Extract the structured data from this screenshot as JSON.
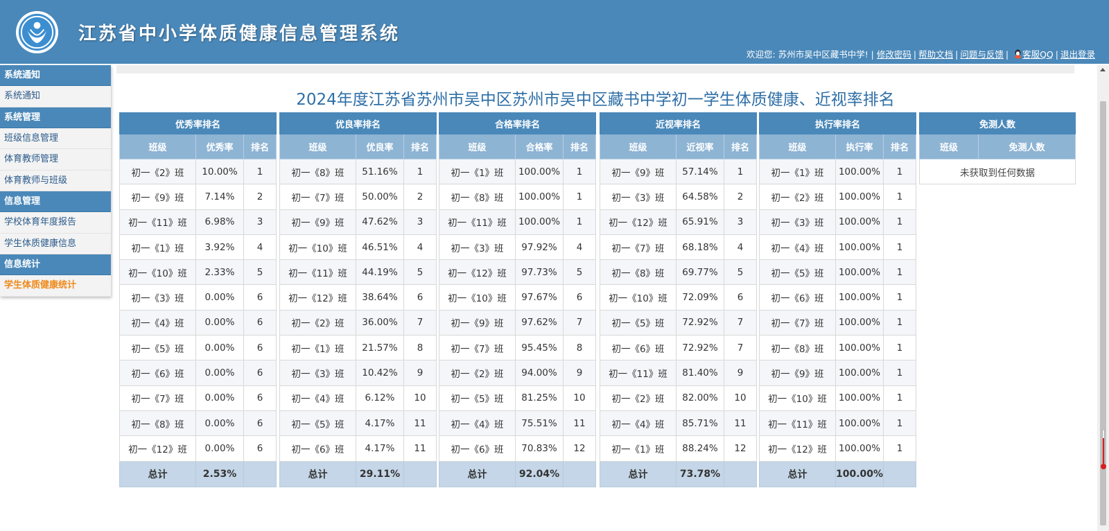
{
  "header": {
    "title": "江苏省中小学体质健康信息管理系统",
    "welcome": "欢迎您: 苏州市吴中区藏书中学! |",
    "links": {
      "change_password": "修改密码",
      "help_docs": "帮助文档",
      "feedback": "问题与反馈",
      "service_qq": "客服QQ",
      "logout": "退出登录"
    },
    "logo_icon": "school-health-logo",
    "brand_color": "#4a88b9"
  },
  "sidebar": {
    "groups": [
      {
        "title": "系统通知",
        "items": [
          "系统通知"
        ]
      },
      {
        "title": "系统管理",
        "items": [
          "班级信息管理",
          "体育教师管理",
          "体育教师与班级"
        ]
      },
      {
        "title": "信息管理",
        "items": [
          "学校体育年度报告",
          "学生体质健康信息"
        ]
      },
      {
        "title": "信息统计",
        "items": [
          "学生体质健康统计"
        ]
      }
    ],
    "active_item": "学生体质健康统计",
    "active_color": "#ef8a1b"
  },
  "page_title": "2024年度江苏省苏州市吴中区苏州市吴中区藏书中学初一学生体质健康、近视率排名",
  "tables": [
    {
      "title": "优秀率排名",
      "headers": [
        "班级",
        "优秀率",
        "排名"
      ],
      "rows": [
        [
          "初一《2》班",
          "10.00%",
          "1"
        ],
        [
          "初一《9》班",
          "7.14%",
          "2"
        ],
        [
          "初一《11》班",
          "6.98%",
          "3"
        ],
        [
          "初一《1》班",
          "3.92%",
          "4"
        ],
        [
          "初一《10》班",
          "2.33%",
          "5"
        ],
        [
          "初一《3》班",
          "0.00%",
          "6"
        ],
        [
          "初一《4》班",
          "0.00%",
          "6"
        ],
        [
          "初一《5》班",
          "0.00%",
          "6"
        ],
        [
          "初一《6》班",
          "0.00%",
          "6"
        ],
        [
          "初一《7》班",
          "0.00%",
          "6"
        ],
        [
          "初一《8》班",
          "0.00%",
          "6"
        ],
        [
          "初一《12》班",
          "0.00%",
          "6"
        ]
      ],
      "total_label": "总计",
      "total_value": "2.53%"
    },
    {
      "title": "优良率排名",
      "headers": [
        "班级",
        "优良率",
        "排名"
      ],
      "rows": [
        [
          "初一《8》班",
          "51.16%",
          "1"
        ],
        [
          "初一《7》班",
          "50.00%",
          "2"
        ],
        [
          "初一《9》班",
          "47.62%",
          "3"
        ],
        [
          "初一《10》班",
          "46.51%",
          "4"
        ],
        [
          "初一《11》班",
          "44.19%",
          "5"
        ],
        [
          "初一《12》班",
          "38.64%",
          "6"
        ],
        [
          "初一《2》班",
          "36.00%",
          "7"
        ],
        [
          "初一《1》班",
          "21.57%",
          "8"
        ],
        [
          "初一《3》班",
          "10.42%",
          "9"
        ],
        [
          "初一《4》班",
          "6.12%",
          "10"
        ],
        [
          "初一《5》班",
          "4.17%",
          "11"
        ],
        [
          "初一《6》班",
          "4.17%",
          "11"
        ]
      ],
      "total_label": "总计",
      "total_value": "29.11%"
    },
    {
      "title": "合格率排名",
      "headers": [
        "班级",
        "合格率",
        "排名"
      ],
      "rows": [
        [
          "初一《1》班",
          "100.00%",
          "1"
        ],
        [
          "初一《8》班",
          "100.00%",
          "1"
        ],
        [
          "初一《11》班",
          "100.00%",
          "1"
        ],
        [
          "初一《3》班",
          "97.92%",
          "4"
        ],
        [
          "初一《12》班",
          "97.73%",
          "5"
        ],
        [
          "初一《10》班",
          "97.67%",
          "6"
        ],
        [
          "初一《9》班",
          "97.62%",
          "7"
        ],
        [
          "初一《7》班",
          "95.45%",
          "8"
        ],
        [
          "初一《2》班",
          "94.00%",
          "9"
        ],
        [
          "初一《5》班",
          "81.25%",
          "10"
        ],
        [
          "初一《4》班",
          "75.51%",
          "11"
        ],
        [
          "初一《6》班",
          "70.83%",
          "12"
        ]
      ],
      "total_label": "总计",
      "total_value": "92.04%"
    },
    {
      "title": "近视率排名",
      "headers": [
        "班级",
        "近视率",
        "排名"
      ],
      "rows": [
        [
          "初一《9》班",
          "57.14%",
          "1"
        ],
        [
          "初一《3》班",
          "64.58%",
          "2"
        ],
        [
          "初一《12》班",
          "65.91%",
          "3"
        ],
        [
          "初一《7》班",
          "68.18%",
          "4"
        ],
        [
          "初一《8》班",
          "69.77%",
          "5"
        ],
        [
          "初一《10》班",
          "72.09%",
          "6"
        ],
        [
          "初一《5》班",
          "72.92%",
          "7"
        ],
        [
          "初一《6》班",
          "72.92%",
          "7"
        ],
        [
          "初一《11》班",
          "81.40%",
          "9"
        ],
        [
          "初一《2》班",
          "82.00%",
          "10"
        ],
        [
          "初一《4》班",
          "85.71%",
          "11"
        ],
        [
          "初一《1》班",
          "88.24%",
          "12"
        ]
      ],
      "total_label": "总计",
      "total_value": "73.78%"
    },
    {
      "title": "执行率排名",
      "headers": [
        "班级",
        "执行率",
        "排名"
      ],
      "rows": [
        [
          "初一《1》班",
          "100.00%",
          "1"
        ],
        [
          "初一《2》班",
          "100.00%",
          "1"
        ],
        [
          "初一《3》班",
          "100.00%",
          "1"
        ],
        [
          "初一《4》班",
          "100.00%",
          "1"
        ],
        [
          "初一《5》班",
          "100.00%",
          "1"
        ],
        [
          "初一《6》班",
          "100.00%",
          "1"
        ],
        [
          "初一《7》班",
          "100.00%",
          "1"
        ],
        [
          "初一《8》班",
          "100.00%",
          "1"
        ],
        [
          "初一《9》班",
          "100.00%",
          "1"
        ],
        [
          "初一《10》班",
          "100.00%",
          "1"
        ],
        [
          "初一《11》班",
          "100.00%",
          "1"
        ],
        [
          "初一《12》班",
          "100.00%",
          "1"
        ]
      ],
      "total_label": "总计",
      "total_value": "100.00%"
    }
  ],
  "exempt_table": {
    "title": "免测人数",
    "headers": [
      "班级",
      "免测人数"
    ],
    "empty_message": "未获取到任何数据"
  }
}
